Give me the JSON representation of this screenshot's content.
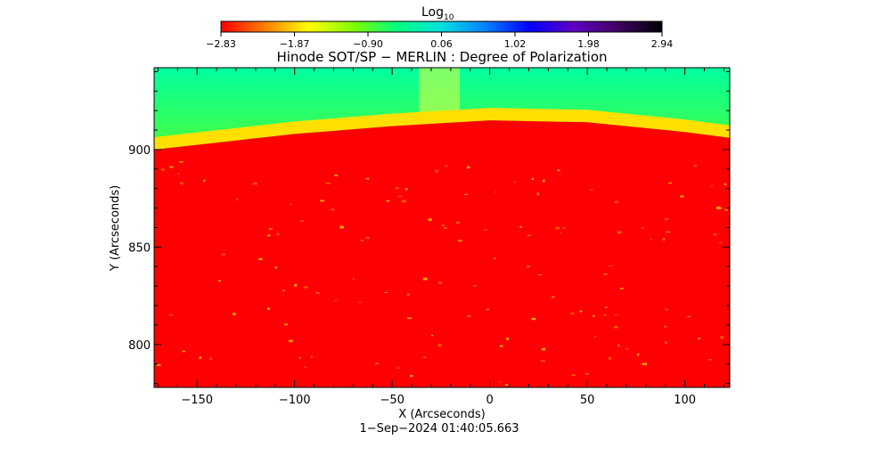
{
  "colorbar": {
    "label": "Log",
    "label_subscript": "10",
    "ticks": [
      "−2.83",
      "−1.87",
      "−0.90",
      "0.06",
      "1.02",
      "1.98",
      "2.94"
    ],
    "colors": [
      "#ff0000",
      "#ff8000",
      "#ffff00",
      "#80ff00",
      "#00ff80",
      "#00e0e0",
      "#0080ff",
      "#0000ff",
      "#6000c0",
      "#400060",
      "#000000"
    ]
  },
  "chart_data": {
    "type": "heatmap",
    "title": "Hinode SOT/SP − MERLIN : Degree of Polarization",
    "xlabel": "X (Arcseconds)",
    "ylabel": "Y (Arcseconds)",
    "timestamp": "1−Sep−2024 01:40:05.663",
    "xlim": [
      -172,
      123
    ],
    "ylim": [
      778,
      942
    ],
    "xticks": [
      -150,
      -100,
      -50,
      0,
      50,
      100
    ],
    "xtick_labels": [
      "−150",
      "−100",
      "−50",
      "0",
      "50",
      "100"
    ],
    "yticks": [
      800,
      850,
      900
    ],
    "ytick_labels": [
      "800",
      "850",
      "900"
    ],
    "limb_profile": [
      {
        "x": -172,
        "y": 900
      },
      {
        "x": -100,
        "y": 908
      },
      {
        "x": -50,
        "y": 912
      },
      {
        "x": 0,
        "y": 915
      },
      {
        "x": 50,
        "y": 914
      },
      {
        "x": 100,
        "y": 909
      },
      {
        "x": 123,
        "y": 906
      }
    ],
    "disk_color": "#ff0000",
    "off_limb_colors": [
      "#ffff00",
      "#b0ff00",
      "#60ff20",
      "#00ffa0"
    ]
  }
}
